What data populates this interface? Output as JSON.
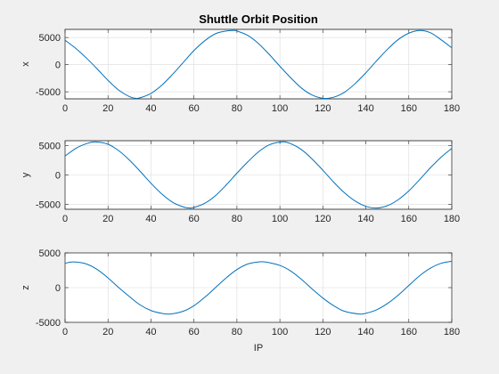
{
  "window": {
    "background": "#f0f0f0"
  },
  "chart_data": {
    "type": "line",
    "title": "Shuttle Orbit Position",
    "xlabel": "IP",
    "xlim": [
      0,
      180
    ],
    "xticks": [
      0,
      20,
      40,
      60,
      80,
      100,
      120,
      140,
      160,
      180
    ],
    "grid": true,
    "line_color": "#0072bd",
    "subplots": [
      {
        "ylabel": "x",
        "ylim": [
          -6300,
          6500
        ],
        "yticks": [
          -5000,
          0,
          5000
        ],
        "series": [
          {
            "x": [
              0,
              5,
              10,
              15,
              20,
              25,
              30,
              33,
              35,
              40,
              45,
              50,
              55,
              60,
              65,
              70,
              75,
              78,
              80,
              85,
              90,
              95,
              100,
              105,
              110,
              115,
              120,
              125,
              130,
              135,
              140,
              145,
              150,
              155,
              160,
              165,
              170,
              175,
              180
            ],
            "y": [
              4500,
              3000,
              1200,
              -800,
              -2900,
              -4700,
              -5900,
              -6200,
              -6100,
              -5300,
              -3800,
              -1800,
              400,
              2600,
              4400,
              5700,
              6200,
              6300,
              6200,
              5400,
              3900,
              1900,
              -300,
              -2400,
              -4300,
              -5600,
              -6200,
              -6000,
              -5100,
              -3500,
              -1500,
              700,
              2800,
              4600,
              5800,
              6300,
              5900,
              4600,
              3100
            ]
          }
        ]
      },
      {
        "ylabel": "y",
        "ylim": [
          -5800,
          5800
        ],
        "yticks": [
          -5000,
          0,
          5000
        ],
        "series": [
          {
            "x": [
              0,
              5,
              10,
              14,
              20,
              25,
              30,
              35,
              40,
              45,
              50,
              55,
              58,
              60,
              65,
              70,
              75,
              80,
              85,
              90,
              95,
              101,
              105,
              110,
              115,
              120,
              125,
              130,
              135,
              140,
              145,
              150,
              155,
              160,
              165,
              170,
              175,
              180
            ],
            "y": [
              3200,
              4500,
              5300,
              5600,
              5200,
              4100,
              2500,
              600,
              -1400,
              -3200,
              -4600,
              -5400,
              -5600,
              -5500,
              -4800,
              -3500,
              -1700,
              300,
              2200,
              3900,
              5100,
              5600,
              5300,
              4300,
              2700,
              800,
              -1200,
              -3000,
              -4400,
              -5300,
              -5600,
              -5200,
              -4200,
              -2700,
              -800,
              1200,
              3000,
              4500
            ]
          }
        ]
      },
      {
        "ylabel": "z",
        "ylim": [
          -5000,
          5000
        ],
        "yticks": [
          -5000,
          0,
          5000
        ],
        "series": [
          {
            "x": [
              0,
              4,
              10,
              15,
              20,
              25,
              30,
              35,
              40,
              45,
              49,
              55,
              60,
              65,
              70,
              75,
              80,
              85,
              90,
              93,
              100,
              105,
              110,
              115,
              120,
              125,
              130,
              137,
              140,
              145,
              150,
              155,
              160,
              165,
              170,
              175,
              180
            ],
            "y": [
              3500,
              3700,
              3400,
              2600,
              1400,
              0,
              -1300,
              -2500,
              -3300,
              -3700,
              -3800,
              -3400,
              -2600,
              -1400,
              0,
              1400,
              2600,
              3400,
              3700,
              3700,
              3200,
              2400,
              1200,
              -200,
              -1500,
              -2600,
              -3400,
              -3800,
              -3700,
              -3200,
              -2300,
              -1100,
              300,
              1700,
              2800,
              3500,
              3800
            ]
          }
        ]
      }
    ]
  }
}
